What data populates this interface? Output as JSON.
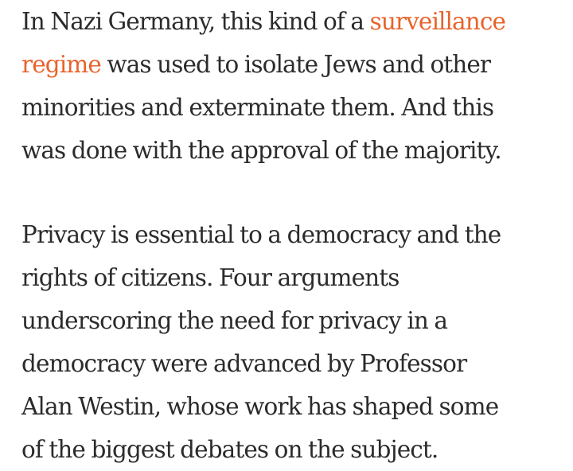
{
  "paragraph1": {
    "line1_before_link": "In Nazi Germany, this kind of a ",
    "link_part1": "surveillance",
    "link_part2": "regime",
    "line2_after_link": " was used to isolate Jews and other",
    "line3": "minorities and exterminate them. And this",
    "line4": "was done with the approval of the majority."
  },
  "paragraph2": {
    "lines": [
      "Privacy is essential to a democracy and the",
      "rights of citizens. Four arguments",
      "underscoring the need for privacy in a",
      "democracy were advanced by Professor",
      "Alan Westin, whose work has shaped some",
      "of the biggest debates on the subject."
    ]
  },
  "colors": {
    "text": "#2b2b2b",
    "link": "#e8632c",
    "background": "#ffffff"
  }
}
